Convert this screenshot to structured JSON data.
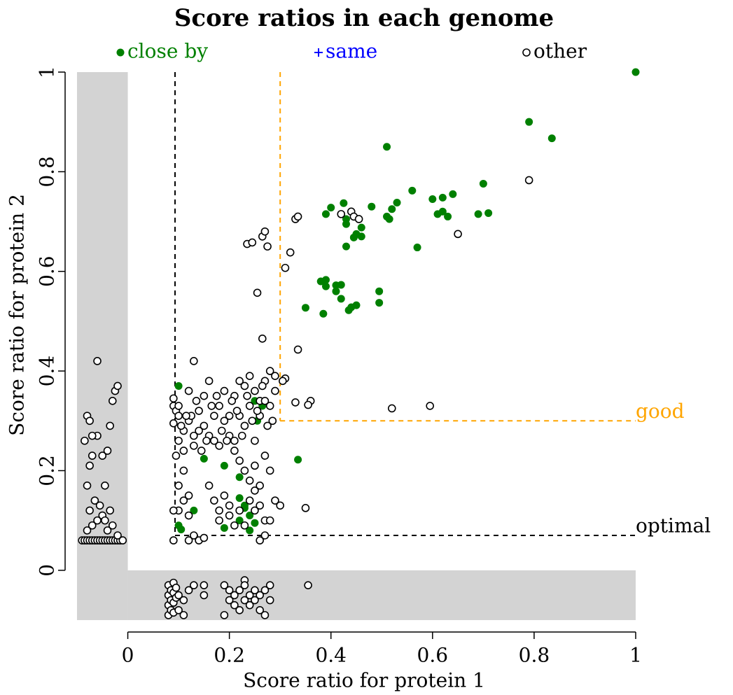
{
  "chart_data": {
    "type": "scatter",
    "title": "Score ratios in each genome",
    "x_label": "Score ratio for protein 1",
    "y_label": "Score ratio for protein 2",
    "xlim": [
      -0.1,
      1
    ],
    "ylim": [
      -0.1,
      1
    ],
    "xticks": [
      0,
      0.2,
      0.4,
      0.6,
      0.8,
      1
    ],
    "yticks": [
      0,
      0.2,
      0.4,
      0.6,
      0.8,
      1
    ],
    "shade_negative": true,
    "shade_color": "#d3d3d3",
    "reference_lines": [
      {
        "label": "optimal",
        "x": 0.093,
        "y": 0.07,
        "color": "#000000"
      },
      {
        "label": "good",
        "x": 0.3,
        "y": 0.3,
        "color": "#ffa500"
      }
    ],
    "series": [
      {
        "name": "close by",
        "color": "#008000",
        "marker": "filled",
        "x": [
          1.0,
          0.79,
          0.835,
          0.51,
          0.7,
          0.56,
          0.64,
          0.6,
          0.62,
          0.425,
          0.53,
          0.4,
          0.48,
          0.52,
          0.62,
          0.71,
          0.69,
          0.61,
          0.63,
          0.39,
          0.51,
          0.515,
          0.43,
          0.43,
          0.46,
          0.45,
          0.46,
          0.445,
          0.43,
          0.57,
          0.38,
          0.39,
          0.41,
          0.39,
          0.42,
          0.41,
          0.495,
          0.42,
          0.35,
          0.44,
          0.45,
          0.495,
          0.435,
          0.385,
          0.335,
          0.15,
          0.19,
          0.22,
          0.265,
          0.255,
          0.1,
          0.105,
          0.19,
          0.22,
          0.23,
          0.24,
          0.22,
          0.25,
          0.24,
          0.1,
          0.13,
          0.25,
          0.23
        ],
        "y": [
          1.0,
          0.9,
          0.867,
          0.85,
          0.776,
          0.762,
          0.755,
          0.745,
          0.748,
          0.737,
          0.738,
          0.728,
          0.73,
          0.725,
          0.72,
          0.717,
          0.715,
          0.715,
          0.71,
          0.715,
          0.71,
          0.705,
          0.705,
          0.695,
          0.688,
          0.675,
          0.67,
          0.668,
          0.65,
          0.648,
          0.58,
          0.583,
          0.572,
          0.57,
          0.573,
          0.56,
          0.56,
          0.545,
          0.527,
          0.528,
          0.532,
          0.537,
          0.522,
          0.515,
          0.222,
          0.224,
          0.21,
          0.187,
          0.33,
          0.3,
          0.09,
          0.082,
          0.085,
          0.145,
          0.125,
          0.11,
          0.1,
          0.095,
          0.08,
          0.37,
          0.12,
          0.34,
          0.13
        ]
      },
      {
        "name": "same",
        "color": "#0000ff",
        "marker": "plus",
        "x": [],
        "y": []
      },
      {
        "name": "other",
        "color": "#000000",
        "marker": "open",
        "x": [
          0.42,
          0.44,
          0.445,
          0.455,
          0.79,
          0.65,
          0.33,
          0.335,
          0.265,
          0.27,
          0.235,
          0.245,
          0.275,
          0.32,
          0.31,
          0.255,
          0.265,
          0.335,
          0.52,
          0.595,
          0.36,
          0.355,
          0.33,
          0.31,
          0.305,
          0.35,
          0.13,
          0.09,
          0.09,
          0.09,
          0.095,
          0.1,
          0.1,
          0.11,
          0.12,
          0.13,
          0.14,
          0.15,
          0.16,
          0.17,
          0.18,
          0.19,
          0.2,
          0.21,
          0.22,
          0.23,
          0.24,
          0.25,
          0.26,
          0.27,
          0.28,
          0.29,
          0.1,
          0.11,
          0.12,
          0.13,
          0.14,
          0.15,
          0.16,
          0.17,
          0.18,
          0.19,
          0.2,
          0.21,
          0.22,
          0.23,
          0.24,
          0.25,
          0.26,
          0.27,
          0.28,
          0.29,
          0.105,
          0.125,
          0.145,
          0.165,
          0.185,
          0.205,
          0.225,
          0.245,
          0.265,
          0.285,
          0.215,
          0.235,
          0.255,
          0.275,
          0.195,
          0.175,
          0.155,
          0.135,
          0.115,
          0.095,
          0.11,
          0.1,
          0.12,
          0.1,
          0.11,
          0.12,
          0.13,
          0.14,
          0.15,
          0.12,
          0.09,
          0.09,
          0.16,
          0.17,
          0.18,
          0.19,
          0.2,
          0.18,
          0.2,
          0.21,
          0.22,
          0.23,
          0.24,
          0.25,
          0.26,
          0.27,
          0.28,
          0.21,
          0.22,
          0.23,
          0.24,
          0.25,
          0.26,
          0.27,
          0.28,
          0.29,
          0.27,
          0.26,
          0.3,
          0.25,
          -0.09,
          -0.085,
          -0.08,
          -0.075,
          -0.07,
          -0.065,
          -0.06,
          -0.055,
          -0.05,
          -0.045,
          -0.04,
          -0.035,
          -0.03,
          -0.025,
          -0.02,
          -0.015,
          -0.01,
          -0.08,
          -0.07,
          -0.06,
          -0.05,
          -0.04,
          -0.03,
          -0.02,
          -0.075,
          -0.065,
          -0.055,
          -0.045,
          -0.035,
          -0.08,
          -0.075,
          -0.07,
          -0.085,
          -0.08,
          -0.075,
          -0.06,
          -0.05,
          -0.04,
          -0.035,
          -0.03,
          -0.025,
          -0.02,
          -0.045,
          -0.06,
          -0.07,
          0.08,
          0.08,
          0.08,
          0.08,
          0.085,
          0.085,
          0.085,
          0.09,
          0.09,
          0.09,
          0.09,
          0.095,
          0.095,
          0.1,
          0.1,
          0.11,
          0.11,
          0.12,
          0.13,
          0.15,
          0.15,
          0.19,
          0.19,
          0.2,
          0.2,
          0.21,
          0.21,
          0.22,
          0.22,
          0.23,
          0.23,
          0.23,
          0.24,
          0.24,
          0.25,
          0.25,
          0.26,
          0.26,
          0.27,
          0.27,
          0.28,
          0.28,
          0.355
        ],
        "y": [
          0.715,
          0.72,
          0.71,
          0.705,
          0.783,
          0.675,
          0.705,
          0.71,
          0.67,
          0.68,
          0.655,
          0.658,
          0.65,
          0.638,
          0.607,
          0.557,
          0.465,
          0.443,
          0.325,
          0.33,
          0.34,
          0.332,
          0.337,
          0.385,
          0.38,
          0.125,
          0.42,
          0.345,
          0.33,
          0.295,
          0.32,
          0.31,
          0.26,
          0.28,
          0.3,
          0.27,
          0.32,
          0.29,
          0.38,
          0.26,
          0.33,
          0.3,
          0.27,
          0.35,
          0.31,
          0.37,
          0.33,
          0.36,
          0.34,
          0.38,
          0.4,
          0.36,
          0.33,
          0.24,
          0.36,
          0.25,
          0.28,
          0.35,
          0.27,
          0.31,
          0.25,
          0.36,
          0.31,
          0.26,
          0.38,
          0.29,
          0.39,
          0.26,
          0.31,
          0.34,
          0.33,
          0.39,
          0.29,
          0.31,
          0.24,
          0.33,
          0.28,
          0.34,
          0.27,
          0.3,
          0.37,
          0.3,
          0.32,
          0.35,
          0.32,
          0.29,
          0.26,
          0.35,
          0.26,
          0.34,
          0.31,
          0.23,
          0.2,
          0.17,
          0.15,
          0.12,
          0.14,
          0.11,
          0.07,
          0.06,
          0.065,
          0.06,
          0.06,
          0.12,
          0.17,
          0.14,
          0.12,
          0.15,
          0.13,
          0.1,
          0.11,
          0.24,
          0.22,
          0.2,
          0.18,
          0.21,
          0.17,
          0.23,
          0.2,
          0.09,
          0.12,
          0.09,
          0.14,
          0.12,
          0.13,
          0.1,
          0.1,
          0.14,
          0.07,
          0.06,
          0.13,
          0.16,
          0.06,
          0.06,
          0.06,
          0.06,
          0.06,
          0.06,
          0.06,
          0.06,
          0.06,
          0.06,
          0.06,
          0.06,
          0.06,
          0.06,
          0.06,
          0.06,
          0.06,
          0.08,
          0.09,
          0.1,
          0.11,
          0.08,
          0.09,
          0.07,
          0.12,
          0.14,
          0.13,
          0.1,
          0.12,
          0.17,
          0.21,
          0.23,
          0.26,
          0.31,
          0.3,
          0.27,
          0.23,
          0.24,
          0.29,
          0.34,
          0.36,
          0.37,
          0.17,
          0.42,
          0.27,
          -0.03,
          -0.05,
          -0.07,
          -0.09,
          -0.04,
          -0.06,
          -0.08,
          -0.025,
          -0.045,
          -0.065,
          -0.085,
          -0.035,
          -0.055,
          -0.05,
          -0.08,
          -0.06,
          -0.09,
          -0.04,
          -0.03,
          -0.03,
          -0.05,
          -0.03,
          -0.09,
          -0.06,
          -0.04,
          -0.05,
          -0.07,
          -0.04,
          -0.08,
          -0.02,
          -0.03,
          -0.06,
          -0.05,
          -0.07,
          -0.04,
          -0.06,
          -0.08,
          -0.05,
          -0.04,
          -0.09,
          -0.06,
          -0.03,
          -0.03
        ]
      }
    ]
  }
}
